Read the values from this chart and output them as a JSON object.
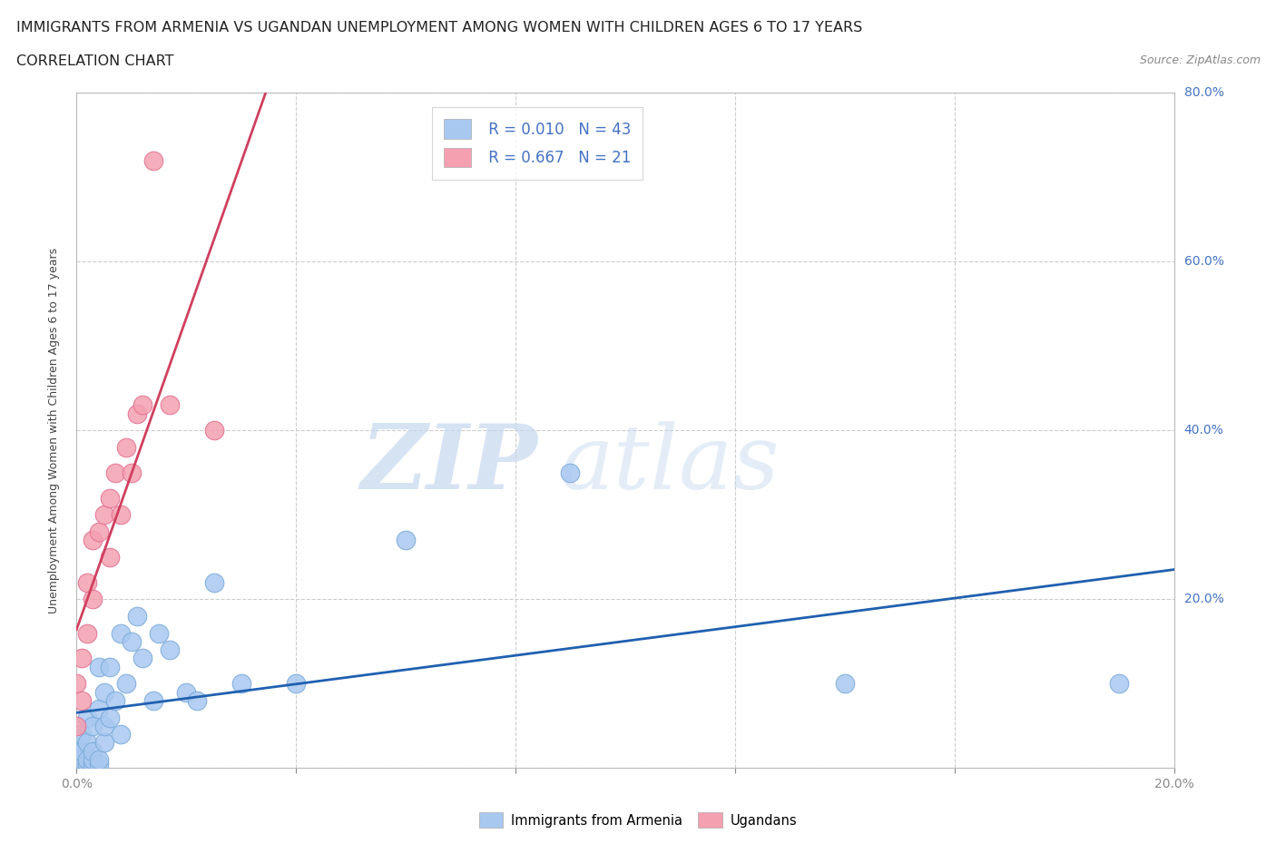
{
  "title_line1": "IMMIGRANTS FROM ARMENIA VS UGANDAN UNEMPLOYMENT AMONG WOMEN WITH CHILDREN AGES 6 TO 17 YEARS",
  "title_line2": "CORRELATION CHART",
  "source_text": "Source: ZipAtlas.com",
  "watermark_zip": "ZIP",
  "watermark_atlas": "atlas",
  "xlabel": "",
  "ylabel": "Unemployment Among Women with Children Ages 6 to 17 years",
  "xlim": [
    0.0,
    0.2
  ],
  "ylim": [
    0.0,
    0.8
  ],
  "xticks": [
    0.0,
    0.04,
    0.08,
    0.12,
    0.16,
    0.2
  ],
  "yticks": [
    0.0,
    0.2,
    0.4,
    0.6,
    0.8
  ],
  "armenia_color": "#a8c8f0",
  "armenia_edge_color": "#7aaad8",
  "uganda_color": "#f4a0b0",
  "uganda_edge_color": "#e07090",
  "armenia_line_color": "#2060b0",
  "uganda_line_color": "#d04060",
  "legend_R1": "R = 0.010",
  "legend_N1": "N = 43",
  "legend_R2": "R = 0.667",
  "legend_N2": "N = 21",
  "R_color": "#4472c4",
  "armenia_scatter_x": [
    0.0,
    0.0,
    0.0,
    0.001,
    0.001,
    0.001,
    0.001,
    0.002,
    0.002,
    0.002,
    0.002,
    0.003,
    0.003,
    0.003,
    0.003,
    0.004,
    0.004,
    0.004,
    0.004,
    0.005,
    0.005,
    0.005,
    0.006,
    0.006,
    0.007,
    0.008,
    0.008,
    0.009,
    0.01,
    0.011,
    0.012,
    0.014,
    0.015,
    0.017,
    0.02,
    0.022,
    0.025,
    0.03,
    0.04,
    0.06,
    0.09,
    0.14,
    0.19
  ],
  "armenia_scatter_y": [
    0.005,
    0.015,
    0.025,
    0.005,
    0.01,
    0.02,
    0.04,
    0.005,
    0.01,
    0.03,
    0.06,
    0.005,
    0.01,
    0.02,
    0.05,
    0.005,
    0.01,
    0.07,
    0.12,
    0.03,
    0.05,
    0.09,
    0.06,
    0.12,
    0.08,
    0.04,
    0.16,
    0.1,
    0.15,
    0.18,
    0.13,
    0.08,
    0.16,
    0.14,
    0.09,
    0.08,
    0.22,
    0.1,
    0.1,
    0.27,
    0.35,
    0.1,
    0.1
  ],
  "uganda_scatter_x": [
    0.0,
    0.0,
    0.001,
    0.001,
    0.002,
    0.002,
    0.003,
    0.003,
    0.004,
    0.005,
    0.006,
    0.006,
    0.007,
    0.008,
    0.009,
    0.01,
    0.011,
    0.012,
    0.014,
    0.017,
    0.025
  ],
  "uganda_scatter_y": [
    0.05,
    0.1,
    0.08,
    0.13,
    0.16,
    0.22,
    0.2,
    0.27,
    0.28,
    0.3,
    0.25,
    0.32,
    0.35,
    0.3,
    0.38,
    0.35,
    0.42,
    0.43,
    0.72,
    0.43,
    0.4
  ],
  "background_color": "#ffffff",
  "grid_color": "#cccccc",
  "title_fontsize": 11.5,
  "label_fontsize": 9,
  "tick_fontsize": 10
}
